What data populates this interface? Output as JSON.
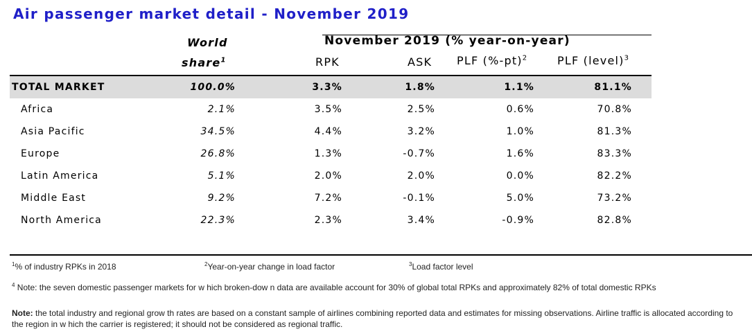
{
  "title": "Air passenger market detail - November 2019",
  "header": {
    "world": "World",
    "share": "share",
    "share_sup": "1",
    "group": "November 2019 (% year-on-year)",
    "rpk": "RPK",
    "ask": "ASK",
    "plf_pt": "PLF (%-pt)",
    "plf_pt_sup": "2",
    "plf_level": "PLF (level)",
    "plf_level_sup": "3"
  },
  "rows": [
    {
      "name": "TOTAL MARKET",
      "share": "100.0%",
      "rpk": "3.3%",
      "ask": "1.8%",
      "plf_pt": "1.1%",
      "plf_level": "81.1%"
    },
    {
      "name": "Africa",
      "share": "2.1%",
      "rpk": "3.5%",
      "ask": "2.5%",
      "plf_pt": "0.6%",
      "plf_level": "70.8%"
    },
    {
      "name": "Asia Pacific",
      "share": "34.5%",
      "rpk": "4.4%",
      "ask": "3.2%",
      "plf_pt": "1.0%",
      "plf_level": "81.3%"
    },
    {
      "name": "Europe",
      "share": "26.8%",
      "rpk": "1.3%",
      "ask": "-0.7%",
      "plf_pt": "1.6%",
      "plf_level": "83.3%"
    },
    {
      "name": "Latin America",
      "share": "5.1%",
      "rpk": "2.0%",
      "ask": "2.0%",
      "plf_pt": "0.0%",
      "plf_level": "82.2%"
    },
    {
      "name": "Middle East",
      "share": "9.2%",
      "rpk": "7.2%",
      "ask": "-0.1%",
      "plf_pt": "5.0%",
      "plf_level": "73.2%"
    },
    {
      "name": "North America",
      "share": "22.3%",
      "rpk": "2.3%",
      "ask": "3.4%",
      "plf_pt": "-0.9%",
      "plf_level": "82.8%"
    }
  ],
  "footnotes": {
    "f1_sup": "1",
    "f1": "% of industry RPKs in 2018",
    "f2_sup": "2",
    "f2": "Year-on-year change in load factor",
    "f3_sup": "3",
    "f3": "Load factor level",
    "f4_sup": "4",
    "f4": " Note: the seven domestic passenger markets for w hich broken-dow n data are available account for 30% of global total RPKs and approximately 82% of total domestic RPKs"
  },
  "note": {
    "label": "Note:",
    "text": " the total industry and regional grow th rates are based on a constant sample of airlines combining reported data and estimates for missing observations. Airline traffic is allocated according to the region in w hich the carrier is registered; it should not be considered as regional traffic."
  }
}
